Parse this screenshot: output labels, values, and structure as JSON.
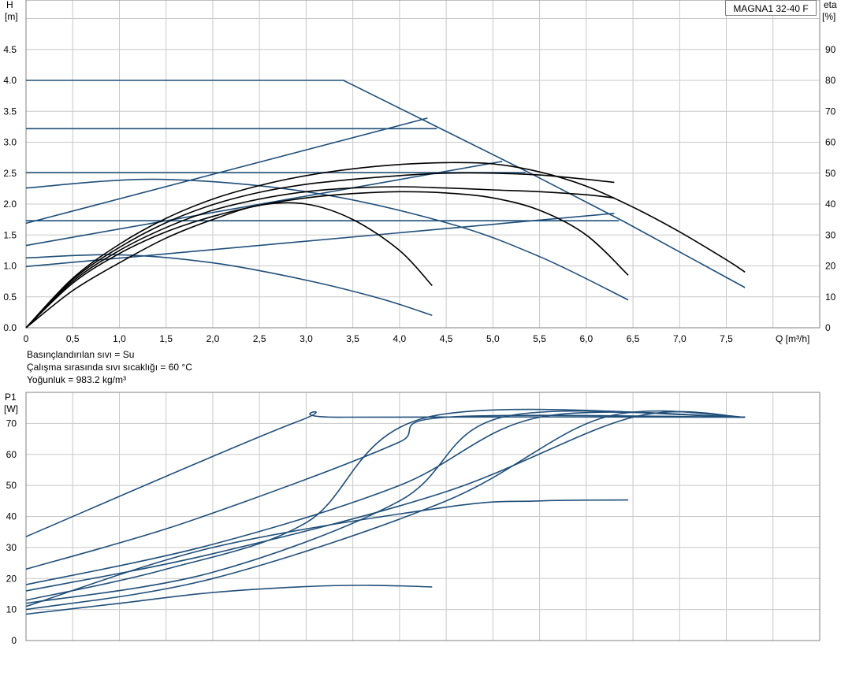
{
  "model_label": "MAGNA1 32-40 F",
  "notes": [
    "Basınçlandırılan sıvı = Su",
    "Çalışma sırasında sıvı sıcaklığı = 60 °C",
    "Yoğunluk = 983.2 kg/m³"
  ],
  "chart_data": [
    {
      "type": "line",
      "ylabel_left": "H",
      "ylabel_left_unit": "[m]",
      "ylabel_right": "eta",
      "ylabel_right_unit": "[%]",
      "xlabel": "Q [m³/h]",
      "xlim": [
        0,
        8.5
      ],
      "ylim_left": [
        0,
        5.3
      ],
      "ylim_right": [
        0,
        106
      ],
      "x_ticks": [
        "0",
        "0,5",
        "1,0",
        "1,5",
        "2,0",
        "2,5",
        "3,0",
        "3,5",
        "4,0",
        "4,5",
        "5,0",
        "5,5",
        "6,0",
        "6,5",
        "7,0",
        "7,5"
      ],
      "y_ticks_left": [
        "0.0",
        "0.5",
        "1.0",
        "1.5",
        "2.0",
        "2.5",
        "3.0",
        "3.5",
        "4.0",
        "4.5"
      ],
      "y_ticks_right": [
        "0",
        "10",
        "20",
        "30",
        "40",
        "50",
        "60",
        "70",
        "80",
        "90"
      ],
      "grid": true,
      "series": [
        {
          "color": "blue",
          "x": [
            0,
            3.4,
            4.4,
            5.4,
            6.4,
            7.7
          ],
          "y": [
            4.0,
            4.0,
            3.25,
            2.5,
            1.72,
            0.65
          ]
        },
        {
          "color": "blue",
          "x": [
            0,
            4.4
          ],
          "y": [
            3.22,
            3.22
          ]
        },
        {
          "color": "blue",
          "x": [
            0,
            5.35
          ],
          "y": [
            2.51,
            2.51
          ]
        },
        {
          "color": "blue",
          "x": [
            0,
            6.35
          ],
          "y": [
            1.73,
            1.73
          ]
        },
        {
          "color": "blue",
          "x": [
            0,
            1.4,
            3.0,
            4.5,
            5.5,
            6.45
          ],
          "y": [
            2.26,
            2.4,
            2.2,
            1.7,
            1.15,
            0.45
          ]
        },
        {
          "color": "blue",
          "x": [
            0,
            1.0,
            2.0,
            3.0,
            3.8,
            4.35
          ],
          "y": [
            1.13,
            1.18,
            1.05,
            0.77,
            0.47,
            0.2
          ]
        },
        {
          "color": "blue",
          "x": [
            0,
            4.3
          ],
          "y": [
            1.69,
            3.39
          ]
        },
        {
          "color": "blue",
          "x": [
            0,
            5.1
          ],
          "y": [
            1.33,
            2.69
          ]
        },
        {
          "color": "blue",
          "x": [
            0,
            6.3
          ],
          "y": [
            0.99,
            1.85
          ]
        },
        {
          "color": "black",
          "x": [
            0,
            0.5,
            1.0,
            1.5,
            2.0,
            2.5,
            3.0,
            3.5,
            4.0,
            4.5,
            5.0,
            5.5,
            6.0,
            6.5,
            7.0,
            7.5,
            7.7
          ],
          "y": [
            0,
            0.8,
            1.35,
            1.77,
            2.08,
            2.3,
            2.46,
            2.57,
            2.64,
            2.67,
            2.65,
            2.52,
            2.29,
            1.95,
            1.55,
            1.1,
            0.9
          ]
        },
        {
          "color": "black",
          "x": [
            0,
            0.5,
            1.0,
            1.5,
            2.0,
            2.5,
            3.0,
            3.5,
            4.0,
            4.5,
            5.0,
            5.5,
            6.0,
            6.3
          ],
          "y": [
            0,
            0.78,
            1.3,
            1.7,
            1.99,
            2.19,
            2.32,
            2.4,
            2.46,
            2.5,
            2.5,
            2.47,
            2.4,
            2.35
          ]
        },
        {
          "color": "black",
          "x": [
            0,
            0.5,
            1.0,
            1.5,
            2.0,
            2.5,
            3.0,
            3.5,
            4.0,
            4.5,
            5.0,
            5.5,
            6.0,
            6.3
          ],
          "y": [
            0,
            0.75,
            1.25,
            1.62,
            1.9,
            2.08,
            2.2,
            2.26,
            2.28,
            2.26,
            2.23,
            2.2,
            2.15,
            2.1
          ]
        },
        {
          "color": "black",
          "x": [
            0,
            0.5,
            1.0,
            1.5,
            2.0,
            2.5,
            3.0,
            3.5,
            4.0,
            4.5,
            5.0,
            5.5,
            6.0,
            6.45
          ],
          "y": [
            0,
            0.72,
            1.2,
            1.55,
            1.8,
            1.98,
            2.1,
            2.17,
            2.2,
            2.18,
            2.1,
            1.9,
            1.5,
            0.85
          ]
        },
        {
          "color": "black",
          "x": [
            0,
            0.5,
            1.0,
            1.5,
            2.0,
            2.5,
            3.0,
            3.5,
            4.0,
            4.35
          ],
          "y": [
            0,
            0.6,
            1.05,
            1.45,
            1.75,
            1.98,
            2.0,
            1.75,
            1.25,
            0.68
          ]
        }
      ]
    },
    {
      "type": "line",
      "ylabel": "P1",
      "ylabel_unit": "[W]",
      "xlim": [
        0,
        8.5
      ],
      "ylim": [
        0,
        80
      ],
      "y_ticks": [
        "0",
        "10",
        "20",
        "30",
        "40",
        "50",
        "60",
        "70"
      ],
      "grid": true,
      "series": [
        {
          "color": "blue",
          "x": [
            0,
            2.9,
            3.4,
            7.7
          ],
          "y": [
            33.5,
            70.5,
            72,
            72
          ]
        },
        {
          "color": "blue",
          "x": [
            0,
            1.5,
            3.0,
            4.0,
            4.5,
            7.7
          ],
          "y": [
            23,
            36,
            52,
            64,
            72,
            72
          ]
        },
        {
          "color": "blue",
          "x": [
            0,
            1.5,
            3.0,
            4.3,
            7.7
          ],
          "y": [
            13,
            23,
            38,
            72,
            72
          ]
        },
        {
          "color": "blue",
          "x": [
            0,
            2.0,
            4.0,
            5.5,
            7.7
          ],
          "y": [
            18,
            31,
            50,
            72,
            72
          ]
        },
        {
          "color": "blue",
          "x": [
            0,
            2.0,
            4.0,
            5.1,
            7.7
          ],
          "y": [
            12,
            22,
            45,
            72,
            72
          ]
        },
        {
          "color": "blue",
          "x": [
            0,
            2.0,
            4.5,
            6.5,
            7.7
          ],
          "y": [
            16,
            28,
            48,
            72,
            72
          ]
        },
        {
          "color": "blue",
          "x": [
            0,
            2.0,
            4.5,
            6.2,
            7.7
          ],
          "y": [
            10,
            20,
            45,
            72,
            72
          ]
        },
        {
          "color": "blue",
          "x": [
            0,
            2.0,
            4.5,
            5.5,
            6.45
          ],
          "y": [
            11,
            30,
            43,
            45,
            45.3
          ]
        },
        {
          "color": "blue",
          "x": [
            0,
            1.0,
            2.0,
            3.0,
            3.7,
            4.35
          ],
          "y": [
            8.5,
            12,
            15.5,
            17.4,
            17.8,
            17.3
          ]
        }
      ]
    }
  ]
}
